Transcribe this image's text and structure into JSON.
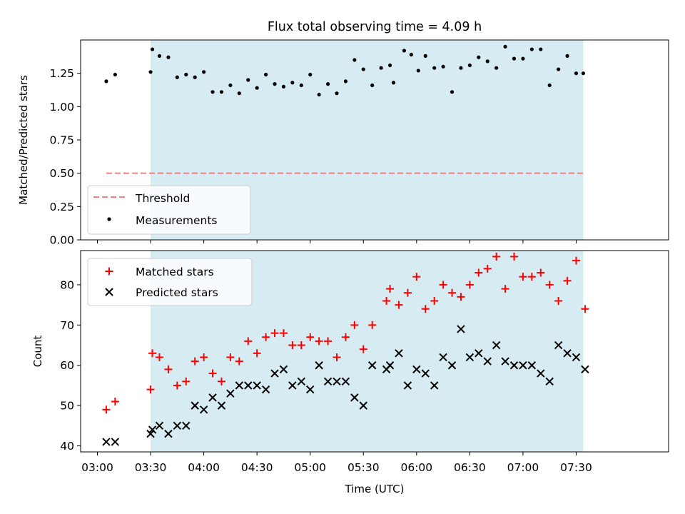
{
  "chart_data": [
    {
      "type": "scatter",
      "title": "Flux total observing time = 4.09 h",
      "xlabel": "",
      "ylabel": "Matched/Predicted stars",
      "ylim": [
        0.0,
        1.5
      ],
      "yticks": [
        "0.00",
        "0.25",
        "0.50",
        "0.75",
        "1.00",
        "1.25"
      ],
      "shaded_span": [
        "03:30",
        "07:34"
      ],
      "legend_position": "lower-left",
      "threshold": {
        "name": "Threshold",
        "value": 0.5,
        "x_range": [
          "03:05",
          "07:34"
        ],
        "color": "#f08080"
      },
      "series": [
        {
          "name": "Measurements",
          "marker": "dot",
          "color": "#000000",
          "x": [
            "03:05",
            "03:10",
            "03:30",
            "03:31",
            "03:35",
            "03:40",
            "03:45",
            "03:50",
            "03:55",
            "04:00",
            "04:05",
            "04:10",
            "04:15",
            "04:20",
            "04:25",
            "04:30",
            "04:35",
            "04:40",
            "04:45",
            "04:50",
            "04:55",
            "05:00",
            "05:05",
            "05:10",
            "05:15",
            "05:20",
            "05:25",
            "05:30",
            "05:35",
            "05:40",
            "05:45",
            "05:47",
            "05:53",
            "05:57",
            "06:01",
            "06:05",
            "06:10",
            "06:15",
            "06:20",
            "06:25",
            "06:30",
            "06:35",
            "06:40",
            "06:45",
            "06:50",
            "06:55",
            "07:00",
            "07:05",
            "07:10",
            "07:15",
            "07:20",
            "07:25",
            "07:30",
            "07:34"
          ],
          "y": [
            1.19,
            1.24,
            1.26,
            1.43,
            1.38,
            1.37,
            1.22,
            1.24,
            1.22,
            1.26,
            1.11,
            1.11,
            1.16,
            1.1,
            1.2,
            1.14,
            1.24,
            1.17,
            1.15,
            1.18,
            1.16,
            1.24,
            1.09,
            1.17,
            1.1,
            1.19,
            1.35,
            1.28,
            1.16,
            1.29,
            1.31,
            1.18,
            1.42,
            1.39,
            1.27,
            1.38,
            1.29,
            1.3,
            1.11,
            1.29,
            1.31,
            1.37,
            1.34,
            1.29,
            1.45,
            1.36,
            1.36,
            1.43,
            1.43,
            1.16,
            1.28,
            1.38,
            1.25,
            1.25
          ]
        }
      ]
    },
    {
      "type": "scatter",
      "title": "",
      "xlabel": "Time (UTC)",
      "ylabel": "Count",
      "ylim": [
        38.5,
        88.5
      ],
      "yticks": [
        "40",
        "50",
        "60",
        "70",
        "80"
      ],
      "xticks": [
        "03:00",
        "03:30",
        "04:00",
        "04:30",
        "05:00",
        "05:30",
        "06:00",
        "06:30",
        "07:00",
        "07:30"
      ],
      "shaded_span": [
        "03:30",
        "07:34"
      ],
      "legend_position": "upper-left",
      "series": [
        {
          "name": "Matched stars",
          "marker": "plus",
          "color": "#ff0000",
          "x": [
            "03:05",
            "03:10",
            "03:30",
            "03:31",
            "03:35",
            "03:40",
            "03:45",
            "03:50",
            "03:55",
            "04:00",
            "04:05",
            "04:10",
            "04:15",
            "04:20",
            "04:25",
            "04:30",
            "04:35",
            "04:40",
            "04:45",
            "04:50",
            "04:55",
            "05:00",
            "05:05",
            "05:10",
            "05:15",
            "05:20",
            "05:25",
            "05:30",
            "05:35",
            "05:43",
            "05:45",
            "05:50",
            "05:55",
            "06:00",
            "06:05",
            "06:10",
            "06:15",
            "06:20",
            "06:25",
            "06:30",
            "06:35",
            "06:40",
            "06:45",
            "06:50",
            "06:55",
            "07:00",
            "07:05",
            "07:10",
            "07:15",
            "07:20",
            "07:25",
            "07:30",
            "07:35"
          ],
          "y": [
            49,
            51,
            54,
            63,
            62,
            59,
            55,
            56,
            61,
            62,
            58,
            56,
            62,
            61,
            66,
            63,
            67,
            68,
            68,
            65,
            65,
            67,
            66,
            66,
            62,
            67,
            70,
            64,
            70,
            76,
            79,
            75,
            78,
            82,
            74,
            76,
            80,
            78,
            77,
            80,
            83,
            84,
            87,
            79,
            87,
            82,
            82,
            83,
            80,
            76,
            81,
            86,
            74
          ]
        },
        {
          "name": "Predicted stars",
          "marker": "x",
          "color": "#000000",
          "x": [
            "03:05",
            "03:10",
            "03:30",
            "03:31",
            "03:35",
            "03:40",
            "03:45",
            "03:50",
            "03:55",
            "04:00",
            "04:05",
            "04:10",
            "04:15",
            "04:20",
            "04:25",
            "04:30",
            "04:35",
            "04:40",
            "04:45",
            "04:50",
            "04:55",
            "05:00",
            "05:05",
            "05:10",
            "05:15",
            "05:20",
            "05:25",
            "05:30",
            "05:35",
            "05:43",
            "05:45",
            "05:50",
            "05:55",
            "06:00",
            "06:05",
            "06:10",
            "06:15",
            "06:20",
            "06:25",
            "06:30",
            "06:35",
            "06:40",
            "06:45",
            "06:50",
            "06:55",
            "07:00",
            "07:05",
            "07:10",
            "07:15",
            "07:20",
            "07:25",
            "07:30",
            "07:35"
          ],
          "y": [
            41,
            41,
            43,
            44,
            45,
            43,
            45,
            45,
            50,
            49,
            52,
            50,
            53,
            55,
            55,
            55,
            54,
            58,
            59,
            55,
            56,
            54,
            60,
            56,
            56,
            56,
            52,
            50,
            60,
            59,
            60,
            63,
            55,
            59,
            58,
            55,
            62,
            60,
            69,
            62,
            63,
            61,
            65,
            61,
            60,
            60,
            60,
            58,
            56,
            65,
            63,
            62,
            59
          ]
        }
      ]
    }
  ]
}
